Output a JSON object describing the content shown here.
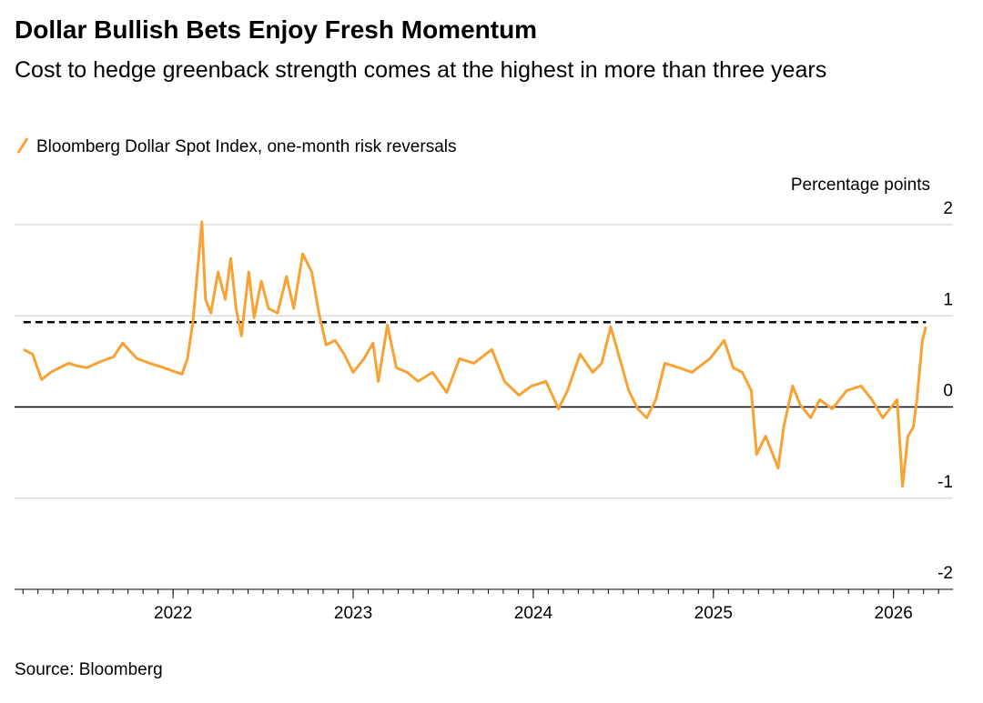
{
  "chart_data": {
    "type": "line",
    "title": "Dollar Bullish Bets Enjoy Fresh Momentum",
    "subtitle": "Cost to hedge greenback strength comes at the highest in more than three years",
    "y_label": "Percentage points",
    "source": "Source: Bloomberg",
    "xlim": [
      2021.12,
      2026.33
    ],
    "xticks": [
      2022,
      2023,
      2024,
      2025,
      2026
    ],
    "ylim": [
      -2,
      2
    ],
    "yticks": [
      2,
      1,
      0,
      -1,
      -2
    ],
    "grid": true,
    "reference_line": 0.93,
    "x": [
      2021.17,
      2021.22,
      2021.27,
      2021.32,
      2021.37,
      2021.42,
      2021.47,
      2021.52,
      2021.6,
      2021.67,
      2021.72,
      2021.8,
      2021.87,
      2021.95,
      2022.05,
      2022.08,
      2022.11,
      2022.14,
      2022.16,
      2022.18,
      2022.21,
      2022.25,
      2022.29,
      2022.32,
      2022.35,
      2022.38,
      2022.42,
      2022.45,
      2022.49,
      2022.53,
      2022.58,
      2022.63,
      2022.67,
      2022.72,
      2022.77,
      2022.81,
      2022.85,
      2022.9,
      2022.95,
      2023.0,
      2023.06,
      2023.11,
      2023.14,
      2023.19,
      2023.24,
      2023.3,
      2023.36,
      2023.44,
      2023.52,
      2023.59,
      2023.67,
      2023.77,
      2023.84,
      2023.92,
      2023.99,
      2024.07,
      2024.14,
      2024.19,
      2024.26,
      2024.33,
      2024.38,
      2024.43,
      2024.48,
      2024.53,
      2024.58,
      2024.63,
      2024.68,
      2024.73,
      2024.81,
      2024.88,
      2024.98,
      2025.06,
      2025.11,
      2025.16,
      2025.21,
      2025.24,
      2025.29,
      2025.36,
      2025.39,
      2025.44,
      2025.48,
      2025.54,
      2025.59,
      2025.66,
      2025.74,
      2025.82,
      2025.88,
      2025.94,
      2026.02,
      2026.05,
      2026.08,
      2026.11,
      2026.13,
      2026.16,
      2026.18
    ],
    "series": [
      {
        "name": "Bloomberg Dollar Spot Index, one-month risk reversals",
        "color": "#f7a233",
        "values": [
          0.63,
          0.58,
          0.3,
          0.38,
          0.43,
          0.48,
          0.45,
          0.43,
          0.5,
          0.55,
          0.7,
          0.53,
          0.48,
          0.43,
          0.36,
          0.53,
          0.93,
          1.58,
          2.03,
          1.18,
          1.03,
          1.48,
          1.18,
          1.63,
          1.08,
          0.78,
          1.48,
          0.98,
          1.38,
          1.08,
          1.03,
          1.43,
          1.08,
          1.68,
          1.48,
          1.03,
          0.68,
          0.73,
          0.58,
          0.38,
          0.53,
          0.7,
          0.28,
          0.9,
          0.43,
          0.38,
          0.28,
          0.38,
          0.16,
          0.53,
          0.48,
          0.63,
          0.28,
          0.13,
          0.23,
          0.28,
          -0.02,
          0.18,
          0.58,
          0.38,
          0.48,
          0.88,
          0.53,
          0.18,
          -0.02,
          -0.12,
          0.08,
          0.48,
          0.43,
          0.38,
          0.53,
          0.73,
          0.43,
          0.38,
          0.18,
          -0.52,
          -0.32,
          -0.67,
          -0.22,
          0.23,
          0.03,
          -0.12,
          0.08,
          -0.02,
          0.18,
          0.23,
          0.08,
          -0.12,
          0.08,
          -0.87,
          -0.32,
          -0.22,
          0.08,
          0.73,
          0.88
        ]
      }
    ]
  }
}
